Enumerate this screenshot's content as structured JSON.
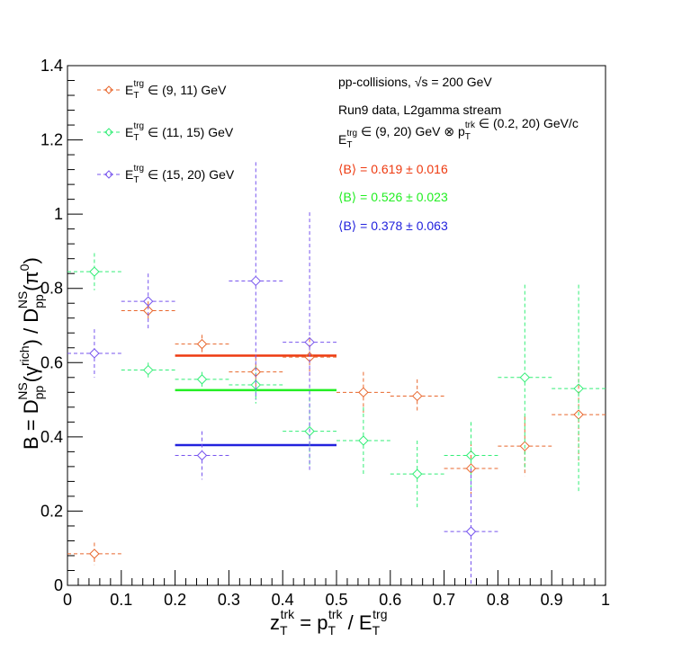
{
  "chart_data": {
    "type": "scatter",
    "xlabel": "z_T^trk = p_T^trk / E_T^trg",
    "ylabel": "B = D_pp^NS(γ^rich) / D_pp^NS(π^0)",
    "xlim": [
      0,
      1
    ],
    "ylim": [
      0,
      1.4
    ],
    "xticks": [
      "0",
      "0.1",
      "0.2",
      "0.3",
      "0.4",
      "0.5",
      "0.6",
      "0.7",
      "0.8",
      "0.9",
      "1"
    ],
    "yticks": [
      "0",
      "0.2",
      "0.4",
      "0.6",
      "0.8",
      "1",
      "1.2",
      "1.4"
    ],
    "grid": false,
    "legend_position": "top-left",
    "series": [
      {
        "name": "E_T^trg ∈ (9, 11) GeV",
        "color": "#e8672d",
        "marker": "open-diamond",
        "x": [
          0.05,
          0.15,
          0.25,
          0.35,
          0.45,
          0.55,
          0.65,
          0.75,
          0.85,
          0.95
        ],
        "y": [
          0.085,
          0.74,
          0.65,
          0.575,
          0.615,
          0.52,
          0.51,
          0.315,
          0.375,
          0.46
        ],
        "yerr": [
          0.03,
          0.025,
          0.025,
          0.04,
          0.05,
          0.055,
          0.045,
          0.07,
          0.08,
          0.13
        ]
      },
      {
        "name": "E_T^trg ∈ (11, 15) GeV",
        "color": "#33ee77",
        "marker": "open-diamond",
        "x": [
          0.05,
          0.15,
          0.25,
          0.35,
          0.45,
          0.55,
          0.65,
          0.75,
          0.85,
          0.95
        ],
        "y": [
          0.845,
          0.58,
          0.555,
          0.54,
          0.415,
          0.39,
          0.3,
          0.35,
          0.56,
          0.53
        ],
        "yerr": [
          0.05,
          0.02,
          0.02,
          0.05,
          0.09,
          0.09,
          0.09,
          0.09,
          0.25,
          0.28
        ]
      },
      {
        "name": "E_T^trg ∈ (15, 20) GeV",
        "color": "#7755ee",
        "marker": "open-diamond",
        "x": [
          0.05,
          0.15,
          0.25,
          0.35,
          0.45,
          0.75
        ],
        "y": [
          0.625,
          0.765,
          0.35,
          0.82,
          0.655,
          0.145
        ],
        "yerr": [
          0.065,
          0.075,
          0.065,
          0.32,
          0.35,
          0.17
        ]
      }
    ],
    "mean_lines": [
      {
        "x_range": [
          0.2,
          0.5
        ],
        "y": 0.619,
        "color": "#ee3a10"
      },
      {
        "x_range": [
          0.2,
          0.5
        ],
        "y": 0.526,
        "color": "#22ee22"
      },
      {
        "x_range": [
          0.2,
          0.5
        ],
        "y": 0.378,
        "color": "#2222dd"
      }
    ],
    "annotations": [
      {
        "text": "pp-collisions, √s = 200 GeV",
        "color": "#000000"
      },
      {
        "text": "Run9 data, L2gamma stream",
        "color": "#000000"
      },
      {
        "text": "E_T^trg ∈ (9, 20) GeV ⊗ p_T^trk ∈ (0.2, 20) GeV/c",
        "color": "#000000"
      },
      {
        "text": "⟨B⟩ = 0.619 ± 0.016",
        "color": "#ee3a10"
      },
      {
        "text": "⟨B⟩ = 0.526 ± 0.023",
        "color": "#22ee22"
      },
      {
        "text": "⟨B⟩ = 0.378 ± 0.063",
        "color": "#2222dd"
      }
    ]
  }
}
